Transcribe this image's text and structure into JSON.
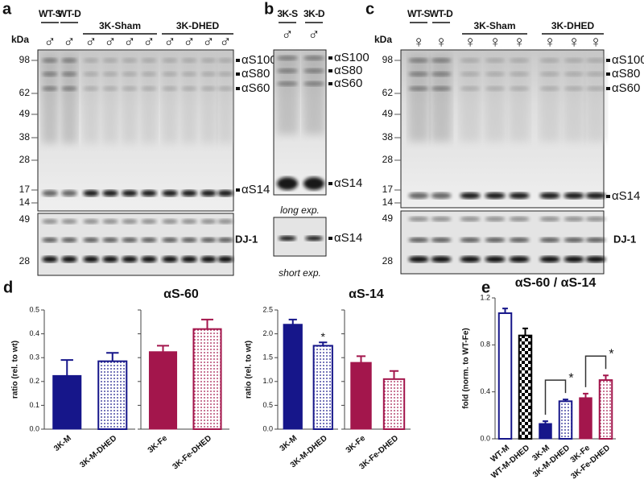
{
  "blots": [
    {
      "label": "a",
      "kda": "kDa",
      "lanes": [
        "WT-S",
        "WT-D"
      ],
      "groups": [
        "3K-Sham",
        "3K-DHED"
      ],
      "sexes": [
        "♂",
        "♂",
        "♂",
        "♂",
        "♂",
        "♂",
        "♂",
        "♂",
        "♂",
        "♂"
      ],
      "markers": [
        98,
        62,
        49,
        38,
        28,
        17,
        14
      ],
      "loading_markers": [
        49,
        28
      ],
      "bands": [
        "αS100",
        "αS80",
        "αS60",
        "αS14"
      ],
      "loading": "DJ-1"
    },
    {
      "label": "b",
      "lanes": [
        "3K-S",
        "3K-D"
      ],
      "sexes": [
        "♂",
        "♂"
      ],
      "bands": [
        "αS100",
        "αS80",
        "αS60",
        "αS14"
      ],
      "loading": "αS14",
      "exposures": [
        "long exp.",
        "short exp."
      ]
    },
    {
      "label": "c",
      "kda": "kDa",
      "lanes": [
        "WT-S",
        "WT-D"
      ],
      "groups": [
        "3K-Sham",
        "3K-DHED"
      ],
      "sexes": [
        "♀",
        "♀",
        "♀",
        "♀",
        "♀",
        "♀",
        "♀",
        "♀"
      ],
      "markers": [
        98,
        62,
        49,
        38,
        28,
        17,
        14
      ],
      "loading_markers": [
        49,
        28
      ],
      "bands": [
        "αS100",
        "αS80",
        "αS60",
        "αS14"
      ],
      "loading": "DJ-1"
    }
  ],
  "chart_data": [
    {
      "type": "bar",
      "panel": "d",
      "title": "αS-60",
      "ylabel": "ratio (rel. to wt)",
      "ylim": [
        0,
        0.5
      ],
      "yticks": [
        {
          "value": 0,
          "label": "0.0"
        },
        0.1,
        0.2,
        0.3,
        0.4,
        0.5
      ],
      "groups": [
        {
          "categories": [
            "3K-M",
            "3K-M-DHED"
          ],
          "values": [
            0.225,
            0.285
          ],
          "errors": [
            0.065,
            0.035
          ],
          "colors": [
            "#16168a",
            "#16168a"
          ],
          "fills": [
            "solid",
            "dots"
          ]
        },
        {
          "categories": [
            "3K-Fe",
            "3K-Fe-DHED"
          ],
          "values": [
            0.325,
            0.42
          ],
          "errors": [
            0.025,
            0.04
          ],
          "colors": [
            "#a3164c",
            "#a3164c"
          ],
          "fills": [
            "solid",
            "dots"
          ]
        }
      ]
    },
    {
      "type": "bar",
      "title": "αS-14",
      "ylabel": "ratio (rel. to wt)",
      "ylim": [
        0,
        2.5
      ],
      "yticks": [
        {
          "value": 0,
          "label": "0.0"
        },
        0.5,
        {
          "value": 1,
          "label": "1.0"
        },
        1.5,
        {
          "value": 2,
          "label": "2.0"
        },
        2.5
      ],
      "groups": [
        {
          "categories": [
            "3K-M",
            "3K-M-DHED"
          ],
          "values": [
            2.2,
            1.75
          ],
          "errors": [
            0.1,
            0.07
          ],
          "colors": [
            "#16168a",
            "#16168a"
          ],
          "fills": [
            "solid",
            "dots"
          ],
          "significance": [
            null,
            "*"
          ]
        },
        {
          "categories": [
            "3K-Fe",
            "3K-Fe-DHED"
          ],
          "values": [
            1.4,
            1.05
          ],
          "errors": [
            0.13,
            0.17
          ],
          "colors": [
            "#a3164c",
            "#a3164c"
          ],
          "fills": [
            "solid",
            "dots"
          ]
        }
      ]
    },
    {
      "type": "bar",
      "panel": "e",
      "title": "αS-60 / αS-14",
      "ylabel": "fold (norm. to WT-Fe)",
      "ylim": [
        0,
        1.2
      ],
      "yticks": [
        {
          "value": 0,
          "label": "0.0"
        },
        0.4,
        0.8,
        1.2
      ],
      "groups": [
        {
          "categories": [
            "WT-M",
            "WT-M-DHED",
            "3K-M",
            "3K-M-DHED",
            "3K-Fe",
            "3K-Fe-DHED"
          ],
          "values": [
            1.07,
            0.88,
            0.13,
            0.32,
            0.35,
            0.5
          ],
          "errors": [
            0.04,
            0.06,
            0.02,
            0.015,
            0.035,
            0.04
          ],
          "colors": [
            "#16168a",
            "#000000",
            "#16168a",
            "#16168a",
            "#a3164c",
            "#a3164c"
          ],
          "fills": [
            "open",
            "checker",
            "solid",
            "dots",
            "solid",
            "dots"
          ],
          "significance": [
            null,
            null,
            null,
            "*",
            null,
            "*"
          ]
        }
      ]
    }
  ]
}
